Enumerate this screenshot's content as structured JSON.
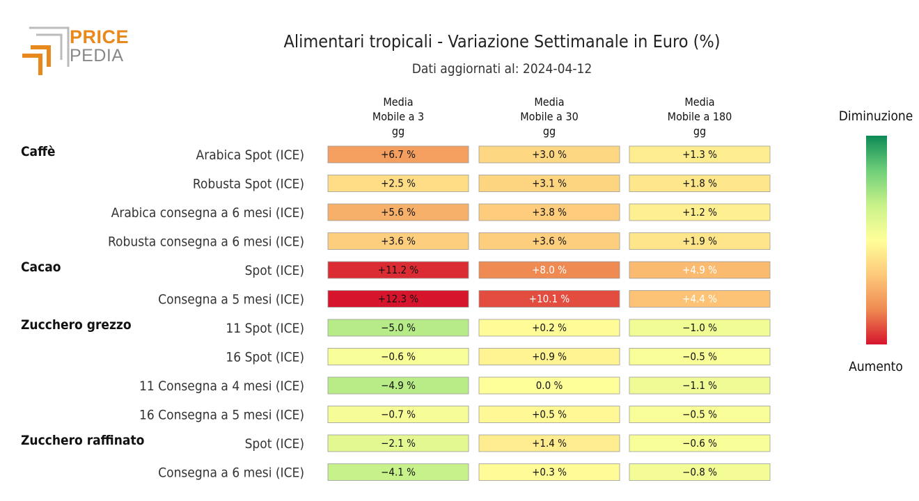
{
  "logo": {
    "word1": "PRICE",
    "word2": "PEDIA"
  },
  "chart_data": {
    "type": "heatmap",
    "title": "Alimentari tropicali - Variazione Settimanale in Euro (%)",
    "subtitle": "Dati aggiornati al: 2024-04-12",
    "columns": [
      "Media\nMobile a 3\ngg",
      "Media\nMobile a 30\ngg",
      "Media\nMobile a 180\ngg"
    ],
    "value_suffix": " %",
    "groups": [
      {
        "name": "Caffè",
        "rows": [
          {
            "label": "Arabica Spot (ICE)",
            "values": [
              6.7,
              3.0,
              1.3
            ]
          },
          {
            "label": "Robusta Spot (ICE)",
            "values": [
              2.5,
              3.1,
              1.8
            ]
          },
          {
            "label": "Arabica consegna a 6 mesi (ICE)",
            "values": [
              5.6,
              3.8,
              1.2
            ]
          },
          {
            "label": "Robusta consegna a 6 mesi (ICE)",
            "values": [
              3.6,
              3.6,
              1.9
            ]
          }
        ]
      },
      {
        "name": "Cacao",
        "rows": [
          {
            "label": "Spot (ICE)",
            "values": [
              11.2,
              8.0,
              4.9
            ]
          },
          {
            "label": "Consegna a 5 mesi (ICE)",
            "values": [
              12.3,
              10.1,
              4.4
            ]
          }
        ]
      },
      {
        "name": "Zucchero grezzo",
        "rows": [
          {
            "label": "11 Spot (ICE)",
            "values": [
              -5.0,
              0.2,
              -1.0
            ]
          },
          {
            "label": "16 Spot (ICE)",
            "values": [
              -0.6,
              0.9,
              -0.5
            ]
          },
          {
            "label": "11 Consegna a 4 mesi (ICE)",
            "values": [
              -4.9,
              0.0,
              -1.1
            ]
          },
          {
            "label": "16 Consegna a 5 mesi (ICE)",
            "values": [
              -0.7,
              0.5,
              -0.5
            ]
          }
        ]
      },
      {
        "name": "Zucchero raffinato",
        "rows": [
          {
            "label": "Spot (ICE)",
            "values": [
              -2.1,
              1.4,
              -0.6
            ]
          },
          {
            "label": "Consegna a 6 mesi (ICE)",
            "values": [
              -4.1,
              0.3,
              -0.8
            ]
          }
        ]
      }
    ],
    "legend": {
      "top_label": "Diminuzione",
      "bottom_label": "Aumento"
    },
    "colors": {
      "scale": [
        "#0d8a55",
        "#6fcf7a",
        "#c9f28a",
        "#ffff99",
        "#fdc97a",
        "#ef8a52",
        "#d6152d"
      ],
      "dark_text_threshold": 4
    }
  }
}
